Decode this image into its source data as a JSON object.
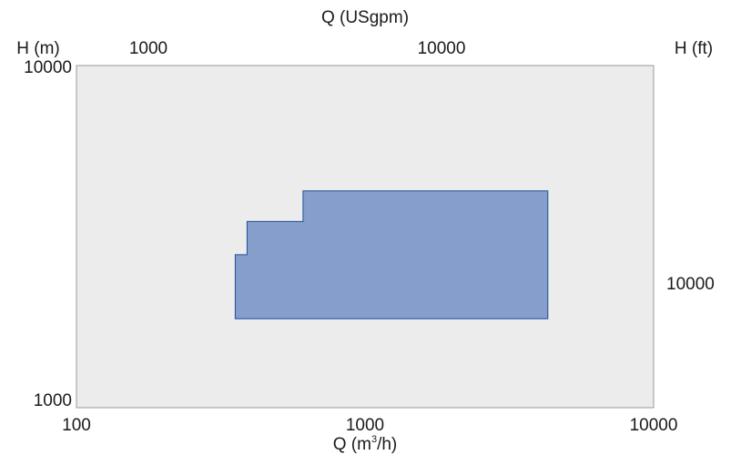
{
  "chart_data": {
    "type": "area",
    "title": "",
    "top_axis": {
      "label": "Q (USgpm)",
      "ticks": [
        {
          "value": 1000,
          "label": "1000"
        },
        {
          "value": 10000,
          "label": "10000"
        }
      ]
    },
    "bottom_axis": {
      "label_prefix": "Q (m",
      "label_sup": "3",
      "label_suffix": "/h)",
      "scale": "log",
      "range": [
        100,
        10000
      ],
      "ticks": [
        {
          "value": 100,
          "label": "100"
        },
        {
          "value": 1000,
          "label": "1000"
        },
        {
          "value": 10000,
          "label": "10000"
        }
      ]
    },
    "left_axis": {
      "label": "H (m)",
      "scale": "log",
      "range": [
        1000,
        10000
      ],
      "ticks": [
        {
          "value": 10000,
          "label": "10000"
        },
        {
          "value": 1000,
          "label": "1000"
        }
      ]
    },
    "right_axis": {
      "label": "H (ft)",
      "ticks": [
        {
          "value": 10000,
          "label": "10000"
        }
      ]
    },
    "grid": false,
    "plot_background": "#ececec",
    "series": [
      {
        "fill": "#859ecb",
        "stroke": "#1f4e9a",
        "points": [
          [
            355,
            1820
          ],
          [
            355,
            2800
          ],
          [
            390,
            2800
          ],
          [
            390,
            3500
          ],
          [
            610,
            3500
          ],
          [
            610,
            4300
          ],
          [
            4300,
            4300
          ],
          [
            4300,
            1820
          ]
        ]
      }
    ]
  }
}
